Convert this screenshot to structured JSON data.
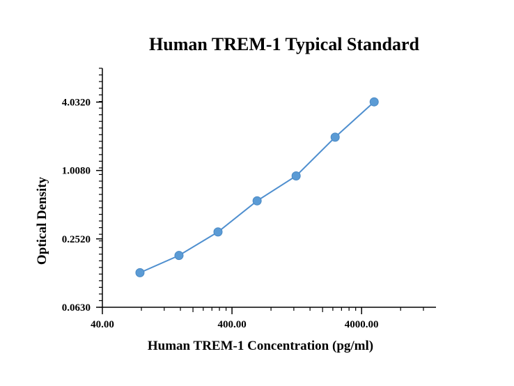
{
  "chart_data": {
    "type": "line",
    "title": "Human TREM-1 Typical Standard",
    "xlabel": "Human TREM-1 Concentration (pg/ml)",
    "ylabel": "Optical Density",
    "x_scale": "log",
    "y_scale": "log",
    "xlim": [
      40,
      15000
    ],
    "ylim": [
      0.063,
      8.0
    ],
    "x_ticks": [
      40,
      400,
      4000
    ],
    "x_tick_labels": [
      "40.00",
      "400.00",
      "4000.00"
    ],
    "y_ticks": [
      0.063,
      0.252,
      1.008,
      4.032
    ],
    "y_tick_labels": [
      "0.0630",
      "0.2520",
      "1.0080",
      "4.0320"
    ],
    "grid": false,
    "series": [
      {
        "color": "#5b9bd5",
        "x": [
          78,
          156,
          312,
          625,
          1250,
          2500,
          5000
        ],
        "y": [
          0.127,
          0.18,
          0.29,
          0.545,
          0.903,
          1.98,
          4.05
        ]
      }
    ]
  }
}
